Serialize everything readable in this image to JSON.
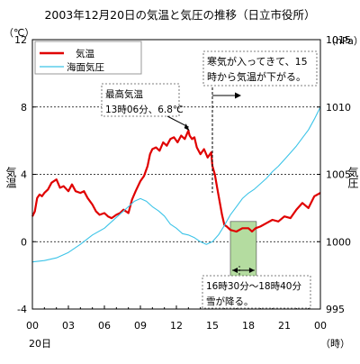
{
  "chart_data": {
    "type": "line",
    "title": "2003年12月20日の気温と気圧の推移（日立市役所）",
    "left_axis": {
      "label": "気温",
      "unit": "（℃）",
      "min": -4,
      "max": 12,
      "ticks": [
        "-4",
        "0",
        "4",
        "8",
        "12"
      ],
      "tick_values": [
        -4,
        0,
        4,
        8,
        12
      ]
    },
    "right_axis": {
      "label": "気圧",
      "unit": "（hPa）",
      "min": 995,
      "max": 1015,
      "ticks": [
        "995",
        "1000",
        "1005",
        "1010",
        "1015"
      ],
      "tick_values": [
        995,
        1000,
        1005,
        1010,
        1015
      ]
    },
    "x_axis": {
      "ticks": [
        "00",
        "03",
        "06",
        "09",
        "12",
        "15",
        "18",
        "21",
        "00"
      ],
      "tick_hours": [
        0,
        3,
        6,
        9,
        12,
        15,
        18,
        21,
        24
      ],
      "date_label": "20日",
      "unit": "（時）"
    },
    "grid": "dashed at 0, 4, 8 ℃",
    "legend": "top-left",
    "series": [
      {
        "name": "気温",
        "axis": "left",
        "color": "#e00000",
        "points": [
          [
            0.0,
            1.5
          ],
          [
            0.2,
            1.8
          ],
          [
            0.4,
            2.6
          ],
          [
            0.6,
            2.8
          ],
          [
            0.8,
            2.7
          ],
          [
            1.0,
            2.9
          ],
          [
            1.3,
            3.1
          ],
          [
            1.6,
            3.5
          ],
          [
            2.0,
            3.7
          ],
          [
            2.3,
            3.2
          ],
          [
            2.6,
            3.3
          ],
          [
            3.0,
            3.0
          ],
          [
            3.3,
            3.4
          ],
          [
            3.6,
            3.0
          ],
          [
            4.0,
            2.9
          ],
          [
            4.3,
            3.0
          ],
          [
            4.6,
            2.6
          ],
          [
            5.0,
            2.2
          ],
          [
            5.3,
            1.8
          ],
          [
            5.6,
            1.6
          ],
          [
            6.0,
            1.7
          ],
          [
            6.3,
            1.5
          ],
          [
            6.6,
            1.4
          ],
          [
            7.0,
            1.6
          ],
          [
            7.3,
            1.7
          ],
          [
            7.6,
            1.9
          ],
          [
            8.0,
            1.7
          ],
          [
            8.3,
            2.5
          ],
          [
            8.6,
            3.0
          ],
          [
            9.0,
            3.6
          ],
          [
            9.3,
            3.9
          ],
          [
            9.6,
            4.5
          ],
          [
            9.8,
            5.2
          ],
          [
            10.0,
            5.5
          ],
          [
            10.3,
            5.6
          ],
          [
            10.6,
            5.4
          ],
          [
            10.9,
            5.9
          ],
          [
            11.2,
            5.7
          ],
          [
            11.5,
            6.1
          ],
          [
            11.8,
            6.2
          ],
          [
            12.1,
            5.9
          ],
          [
            12.4,
            6.3
          ],
          [
            12.7,
            6.1
          ],
          [
            13.0,
            6.6
          ],
          [
            13.1,
            6.3
          ],
          [
            13.3,
            6.1
          ],
          [
            13.5,
            6.2
          ],
          [
            13.7,
            5.6
          ],
          [
            14.0,
            5.2
          ],
          [
            14.3,
            5.5
          ],
          [
            14.6,
            5.0
          ],
          [
            14.9,
            5.3
          ],
          [
            15.0,
            4.5
          ],
          [
            15.2,
            4.0
          ],
          [
            15.4,
            3.2
          ],
          [
            15.6,
            2.4
          ],
          [
            15.8,
            1.6
          ],
          [
            16.0,
            1.0
          ],
          [
            16.2,
            0.9
          ],
          [
            16.5,
            0.7
          ],
          [
            17.0,
            0.6
          ],
          [
            17.5,
            0.8
          ],
          [
            18.0,
            0.8
          ],
          [
            18.3,
            0.6
          ],
          [
            18.6,
            0.8
          ],
          [
            19.0,
            0.9
          ],
          [
            19.5,
            1.1
          ],
          [
            20.0,
            1.3
          ],
          [
            20.5,
            1.2
          ],
          [
            21.0,
            1.5
          ],
          [
            21.5,
            1.4
          ],
          [
            22.0,
            1.9
          ],
          [
            22.5,
            2.3
          ],
          [
            23.0,
            2.0
          ],
          [
            23.5,
            2.7
          ],
          [
            24.0,
            2.9
          ]
        ]
      },
      {
        "name": "海面気圧",
        "axis": "right",
        "color": "#3cc4e8",
        "points": [
          [
            0.0,
            998.5
          ],
          [
            1.0,
            998.6
          ],
          [
            2.0,
            998.8
          ],
          [
            3.0,
            999.2
          ],
          [
            4.0,
            999.8
          ],
          [
            5.0,
            1000.5
          ],
          [
            6.0,
            1001.0
          ],
          [
            7.0,
            1001.8
          ],
          [
            8.0,
            1002.6
          ],
          [
            8.5,
            1003.0
          ],
          [
            9.0,
            1003.2
          ],
          [
            9.5,
            1003.0
          ],
          [
            10.0,
            1002.6
          ],
          [
            10.5,
            1002.3
          ],
          [
            11.0,
            1001.9
          ],
          [
            11.5,
            1001.3
          ],
          [
            12.0,
            1001.0
          ],
          [
            12.5,
            1000.6
          ],
          [
            13.0,
            1000.5
          ],
          [
            13.5,
            1000.3
          ],
          [
            14.0,
            1000.0
          ],
          [
            14.5,
            999.8
          ],
          [
            15.0,
            1000.0
          ],
          [
            15.5,
            1000.5
          ],
          [
            16.0,
            1001.2
          ],
          [
            16.5,
            1002.0
          ],
          [
            17.0,
            1002.6
          ],
          [
            17.5,
            1003.2
          ],
          [
            18.0,
            1003.6
          ],
          [
            18.5,
            1003.9
          ],
          [
            19.0,
            1004.3
          ],
          [
            19.5,
            1004.7
          ],
          [
            20.0,
            1005.2
          ],
          [
            20.5,
            1005.6
          ],
          [
            21.0,
            1006.1
          ],
          [
            21.5,
            1006.6
          ],
          [
            22.0,
            1007.1
          ],
          [
            22.5,
            1007.7
          ],
          [
            23.0,
            1008.3
          ],
          [
            23.5,
            1009.1
          ],
          [
            24.0,
            1010.0
          ]
        ]
      }
    ],
    "annotations": {
      "max_temp": {
        "lines": [
          "最高気温",
          "13時06分、6.8℃"
        ],
        "hour": 13.1,
        "value": 6.8
      },
      "cold_air": {
        "lines": [
          "寒気が入ってきて、15",
          "時から気温が下がる。"
        ],
        "hour": 15
      },
      "snow": {
        "lines": [
          "16時30分～18時40分",
          "雪が降る。"
        ],
        "start_hour": 16.5,
        "end_hour": 18.667,
        "range_low": -2.8,
        "range_high": 1.2,
        "color": "#b4dca0"
      }
    }
  }
}
